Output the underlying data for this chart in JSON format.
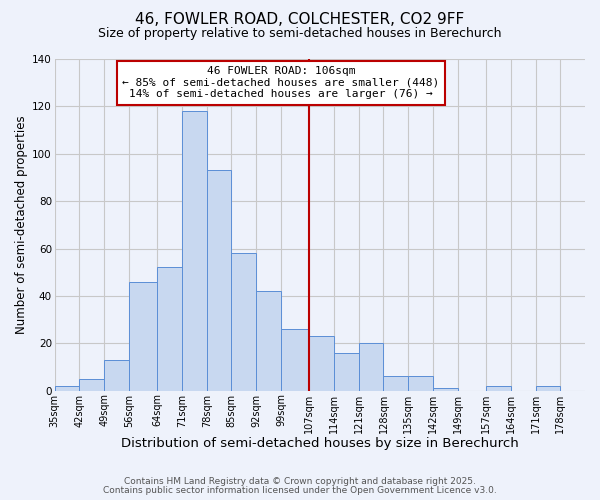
{
  "title": "46, FOWLER ROAD, COLCHESTER, CO2 9FF",
  "subtitle": "Size of property relative to semi-detached houses in Berechurch",
  "xlabel": "Distribution of semi-detached houses by size in Berechurch",
  "ylabel": "Number of semi-detached properties",
  "bin_labels": [
    "35sqm",
    "42sqm",
    "49sqm",
    "56sqm",
    "64sqm",
    "71sqm",
    "78sqm",
    "85sqm",
    "92sqm",
    "99sqm",
    "107sqm",
    "114sqm",
    "121sqm",
    "128sqm",
    "135sqm",
    "142sqm",
    "149sqm",
    "157sqm",
    "164sqm",
    "171sqm",
    "178sqm"
  ],
  "bin_edges": [
    35,
    42,
    49,
    56,
    64,
    71,
    78,
    85,
    92,
    99,
    107,
    114,
    121,
    128,
    135,
    142,
    149,
    157,
    164,
    171,
    178
  ],
  "bar_heights": [
    2,
    5,
    13,
    46,
    52,
    118,
    93,
    58,
    42,
    26,
    23,
    16,
    20,
    6,
    6,
    1,
    0,
    2,
    0,
    2
  ],
  "bar_color": "#c8d8f0",
  "bar_edgecolor": "#5b8ed6",
  "property_line_x": 107,
  "property_line_color": "#bb0000",
  "annotation_text": "46 FOWLER ROAD: 106sqm\n← 85% of semi-detached houses are smaller (448)\n14% of semi-detached houses are larger (76) →",
  "annotation_box_edgecolor": "#bb0000",
  "annotation_box_facecolor": "#ffffff",
  "ylim": [
    0,
    140
  ],
  "yticks": [
    0,
    20,
    40,
    60,
    80,
    100,
    120,
    140
  ],
  "grid_color": "#c8c8c8",
  "background_color": "#eef2fb",
  "footer_line1": "Contains HM Land Registry data © Crown copyright and database right 2025.",
  "footer_line2": "Contains public sector information licensed under the Open Government Licence v3.0.",
  "title_fontsize": 11,
  "subtitle_fontsize": 9,
  "xlabel_fontsize": 9.5,
  "ylabel_fontsize": 8.5,
  "annotation_fontsize": 8,
  "footer_fontsize": 6.5,
  "tick_fontsize": 7
}
